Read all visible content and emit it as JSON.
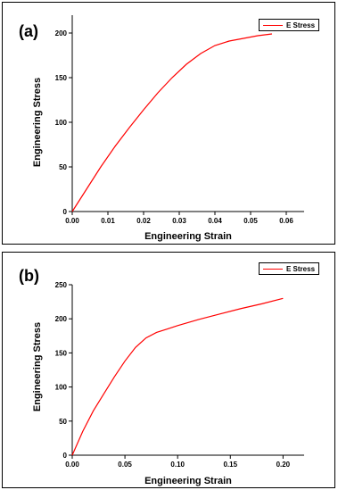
{
  "colors": {
    "series": "#ff0000",
    "axes": "#000000"
  },
  "chart_data": [
    {
      "panel_label": "(a)",
      "type": "line",
      "xlabel": "Engineering Strain",
      "ylabel": "Engineering Stress",
      "xlim": [
        0,
        0.065
      ],
      "ylim": [
        0,
        220
      ],
      "xticks": [
        "0.00",
        "0.01",
        "0.02",
        "0.03",
        "0.04",
        "0.05",
        "0.06"
      ],
      "yticks": [
        "0",
        "50",
        "100",
        "150",
        "200"
      ],
      "grid": false,
      "legend_position": "top-right",
      "series": [
        {
          "name": "E Stress",
          "x": [
            0,
            0.004,
            0.008,
            0.012,
            0.016,
            0.02,
            0.024,
            0.028,
            0.032,
            0.036,
            0.04,
            0.044,
            0.048,
            0.052,
            0.056
          ],
          "y": [
            0,
            25,
            50,
            73,
            94,
            114,
            133,
            150,
            165,
            177,
            186,
            191,
            194,
            197,
            199
          ]
        }
      ]
    },
    {
      "panel_label": "(b)",
      "type": "line",
      "xlabel": "Engineering Strain",
      "ylabel": "Engineering Stress",
      "xlim": [
        0,
        0.22
      ],
      "ylim": [
        0,
        250
      ],
      "xticks": [
        "0.00",
        "0.05",
        "0.10",
        "0.15",
        "0.20"
      ],
      "yticks": [
        "0",
        "50",
        "100",
        "150",
        "200",
        "250"
      ],
      "grid": false,
      "legend_position": "top-right",
      "series": [
        {
          "name": "E Stress",
          "x": [
            0,
            0.01,
            0.02,
            0.03,
            0.04,
            0.05,
            0.06,
            0.07,
            0.08,
            0.09,
            0.1,
            0.12,
            0.14,
            0.16,
            0.18,
            0.2
          ],
          "y": [
            0,
            35,
            65,
            90,
            115,
            138,
            158,
            172,
            180,
            185,
            190,
            199,
            207,
            215,
            222,
            230
          ]
        }
      ]
    }
  ]
}
